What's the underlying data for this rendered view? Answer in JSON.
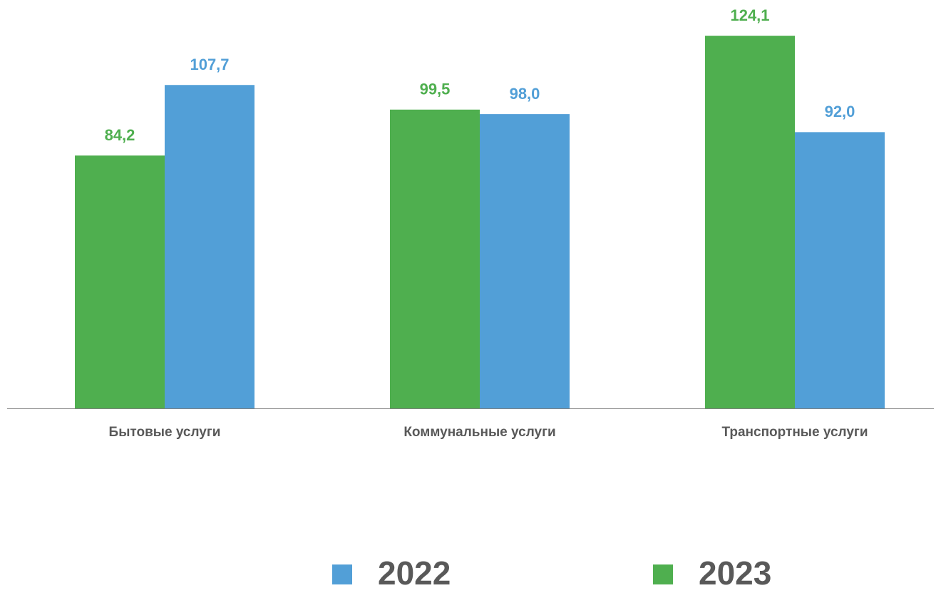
{
  "chart_data": {
    "type": "bar",
    "categories": [
      "Бытовые услуги",
      "Коммунальные услуги",
      "Транспортные услуги"
    ],
    "series": [
      {
        "name": "2022",
        "color": "#529fd7",
        "values": [
          107.7,
          98.0,
          92.0
        ],
        "value_labels": [
          "107,7",
          "98,0",
          "92,0"
        ]
      },
      {
        "name": "2023",
        "color": "#4faf4f",
        "values": [
          84.2,
          99.5,
          124.1
        ],
        "value_labels": [
          "84,2",
          "99,5",
          "124,1"
        ]
      }
    ],
    "ylim": [
      0,
      136
    ]
  }
}
